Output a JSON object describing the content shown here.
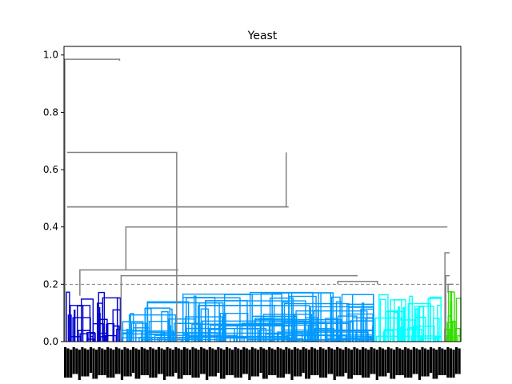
{
  "chart_data": {
    "type": "dendrogram",
    "title": "Yeast",
    "xlabel": "",
    "ylabel": "",
    "ylim": [
      0,
      1.03
    ],
    "yticks": [
      "0.0",
      "0.2",
      "0.4",
      "0.6",
      "0.8",
      "1.0"
    ],
    "ytick_values": [
      0.0,
      0.2,
      0.4,
      0.6,
      0.8,
      1.0
    ],
    "threshold": 0.2,
    "leaf_count": 500,
    "leaf_labels_legible": false,
    "colors": {
      "link_above_threshold": "#808080",
      "cluster_1": "#0000cc",
      "cluster_2": "#0099ff",
      "cluster_3": "#00ffff",
      "cluster_4": "#33dd00",
      "threshold_line": "#808080"
    },
    "clusters": [
      {
        "color_key": "cluster_1",
        "leaf_start": 3,
        "leaf_end": 71
      },
      {
        "color_key": "cluster_2",
        "leaf_start": 71,
        "leaf_end": 390
      },
      {
        "color_key": "cluster_3",
        "leaf_start": 390,
        "leaf_end": 475
      },
      {
        "color_key": "cluster_4",
        "leaf_start": 478,
        "leaf_end": 500
      }
    ],
    "merges": [
      {
        "x1": 1.0,
        "x2": 70.0,
        "y1": 0.0,
        "y2": 0.98,
        "h": 0.985
      },
      {
        "x1": 4.0,
        "x2": 142.0,
        "y1": 0.66,
        "y2": 0.0,
        "h": 0.66
      },
      {
        "x1": 4.0,
        "x2": 280.0,
        "y1": 0.47,
        "y2": 0.66,
        "h": 0.47
      },
      {
        "x1": 4.0,
        "x2": 283.0,
        "y1": 0.47,
        "y2": 0.47,
        "h": 0.47
      },
      {
        "x1": 78.0,
        "x2": 483.0,
        "y1": 0.25,
        "y2": 0.4,
        "h": 0.4
      },
      {
        "x1": 20.0,
        "x2": 144.0,
        "y1": 0.16,
        "y2": 0.25,
        "h": 0.25
      },
      {
        "x1": 72.0,
        "x2": 370.0,
        "y1": 0.0,
        "y2": 0.23,
        "h": 0.23
      },
      {
        "x1": 480.0,
        "x2": 486.0,
        "y1": 0.0,
        "y2": 0.31,
        "h": 0.31
      },
      {
        "x1": 481.0,
        "x2": 486.0,
        "y1": 0.0,
        "y2": 0.23,
        "h": 0.23
      },
      {
        "x1": 484.0,
        "x2": 490.0,
        "y1": 0.17,
        "y2": 0.2,
        "h": 0.2
      },
      {
        "x1": 345.0,
        "x2": 395.0,
        "y1": 0.2,
        "y2": 0.2,
        "h": 0.21
      }
    ]
  }
}
